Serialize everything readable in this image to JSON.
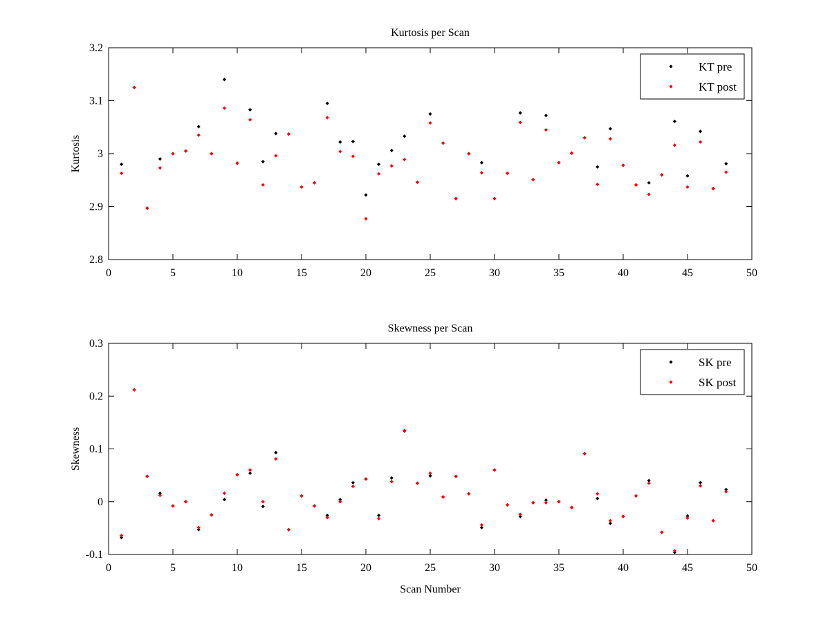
{
  "chart_data": [
    {
      "type": "scatter",
      "title": "Kurtosis per Scan",
      "xlabel": "",
      "ylabel": "Kurtosis",
      "xlim": [
        0,
        50
      ],
      "ylim": [
        2.8,
        3.2
      ],
      "xticks": [
        "0",
        "5",
        "10",
        "15",
        "20",
        "25",
        "30",
        "35",
        "40",
        "45",
        "50"
      ],
      "yticks": [
        "2.8",
        "2.9",
        "3",
        "3.1",
        "3.2"
      ],
      "x": [
        1,
        2,
        3,
        4,
        5,
        6,
        7,
        8,
        9,
        10,
        11,
        12,
        13,
        14,
        15,
        16,
        17,
        18,
        19,
        20,
        21,
        22,
        23,
        24,
        25,
        26,
        27,
        28,
        29,
        30,
        31,
        32,
        33,
        34,
        35,
        36,
        37,
        38,
        39,
        40,
        41,
        42,
        43,
        44,
        45,
        46,
        47,
        48
      ],
      "series": [
        {
          "name": "KT pre",
          "color": "#000000",
          "values": [
            2.98,
            3.125,
            2.897,
            2.99,
            3.0,
            3.005,
            3.051,
            3.0,
            3.14,
            2.982,
            3.083,
            2.985,
            3.038,
            3.037,
            2.937,
            2.945,
            3.095,
            3.022,
            3.023,
            2.922,
            2.98,
            3.006,
            3.033,
            2.946,
            3.075,
            3.02,
            2.915,
            3.0,
            2.983,
            2.915,
            2.963,
            3.077,
            2.951,
            3.072,
            2.983,
            3.001,
            3.03,
            2.975,
            3.047,
            2.978,
            2.941,
            2.945,
            2.96,
            3.061,
            2.958,
            3.042,
            2.934,
            2.981
          ]
        },
        {
          "name": "KT post",
          "color": "#ff0000",
          "values": [
            2.963,
            3.125,
            2.897,
            2.973,
            3.0,
            3.005,
            3.035,
            3.0,
            3.086,
            2.982,
            3.064,
            2.941,
            2.996,
            3.037,
            2.937,
            2.945,
            3.068,
            3.004,
            2.995,
            2.877,
            2.962,
            2.977,
            2.989,
            2.946,
            3.058,
            3.02,
            2.915,
            3.0,
            2.964,
            2.915,
            2.963,
            3.059,
            2.951,
            3.045,
            2.983,
            3.001,
            3.03,
            2.942,
            3.028,
            2.978,
            2.941,
            2.923,
            2.96,
            3.016,
            2.937,
            3.022,
            2.934,
            2.965
          ]
        }
      ],
      "legend": {
        "position": "top-right",
        "entries": [
          "KT pre",
          "KT post"
        ]
      }
    },
    {
      "type": "scatter",
      "title": "Skewness per Scan",
      "xlabel": "Scan Number",
      "ylabel": "Skewness",
      "xlim": [
        0,
        50
      ],
      "ylim": [
        -0.1,
        0.3
      ],
      "xticks": [
        "0",
        "5",
        "10",
        "15",
        "20",
        "25",
        "30",
        "35",
        "40",
        "45",
        "50"
      ],
      "yticks": [
        "-0.1",
        "0",
        "0.1",
        "0.2",
        "0.3"
      ],
      "x": [
        1,
        2,
        3,
        4,
        5,
        6,
        7,
        8,
        9,
        10,
        11,
        12,
        13,
        14,
        15,
        16,
        17,
        18,
        19,
        20,
        21,
        22,
        23,
        24,
        25,
        26,
        27,
        28,
        29,
        30,
        31,
        32,
        33,
        34,
        35,
        36,
        37,
        38,
        39,
        40,
        41,
        42,
        43,
        44,
        45,
        46,
        47,
        48
      ],
      "series": [
        {
          "name": "SK pre",
          "color": "#000000",
          "values": [
            -0.068,
            0.212,
            0.048,
            0.016,
            -0.008,
            0.0,
            -0.053,
            -0.025,
            0.004,
            0.051,
            0.054,
            -0.009,
            0.093,
            -0.053,
            0.011,
            -0.008,
            -0.026,
            0.004,
            0.036,
            0.043,
            -0.026,
            0.045,
            0.134,
            0.035,
            0.049,
            0.009,
            0.048,
            0.015,
            -0.049,
            0.06,
            -0.006,
            -0.028,
            -0.002,
            0.003,
            0.0,
            -0.011,
            0.091,
            0.006,
            -0.041,
            -0.028,
            0.011,
            0.04,
            -0.058,
            -0.096,
            -0.027,
            0.036,
            -0.036,
            0.023
          ]
        },
        {
          "name": "SK post",
          "color": "#ff0000",
          "values": [
            -0.064,
            0.212,
            0.048,
            0.012,
            -0.008,
            0.0,
            -0.049,
            -0.025,
            0.016,
            0.051,
            0.06,
            0.0,
            0.081,
            -0.053,
            0.011,
            -0.008,
            -0.03,
            0.0,
            0.029,
            0.043,
            -0.032,
            0.038,
            0.135,
            0.035,
            0.054,
            0.009,
            0.048,
            0.015,
            -0.044,
            0.06,
            -0.006,
            -0.024,
            -0.002,
            -0.002,
            0.0,
            -0.011,
            0.091,
            0.015,
            -0.036,
            -0.028,
            0.011,
            0.035,
            -0.058,
            -0.093,
            -0.031,
            0.03,
            -0.036,
            0.019
          ]
        }
      ],
      "legend": {
        "position": "top-right",
        "entries": [
          "SK pre",
          "SK post"
        ]
      }
    }
  ]
}
